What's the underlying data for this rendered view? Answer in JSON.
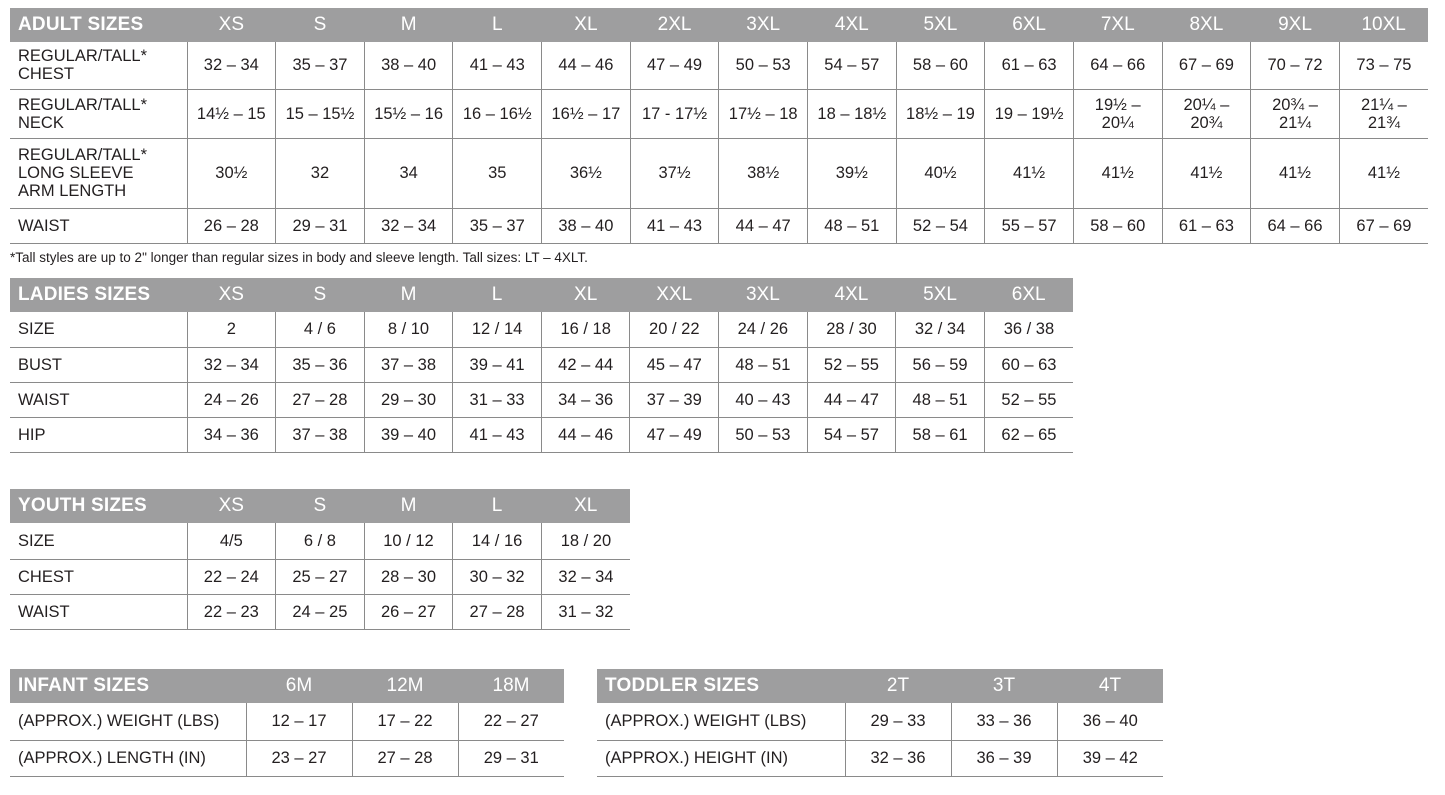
{
  "adult": {
    "title": "ADULT SIZES",
    "sizes": [
      "XS",
      "S",
      "M",
      "L",
      "XL",
      "2XL",
      "3XL",
      "4XL",
      "5XL",
      "6XL",
      "7XL",
      "8XL",
      "9XL",
      "10XL"
    ],
    "rows": [
      {
        "label": "REGULAR/TALL*\nCHEST",
        "values": [
          "32 – 34",
          "35 – 37",
          "38 – 40",
          "41 – 43",
          "44 – 46",
          "47 – 49",
          "50 – 53",
          "54 – 57",
          "58 – 60",
          "61 – 63",
          "64 – 66",
          "67 – 69",
          "70 – 72",
          "73 – 75"
        ]
      },
      {
        "label": "REGULAR/TALL*\nNECK",
        "values": [
          "14½ – 15",
          "15 – 15½",
          "15½ – 16",
          "16 – 16½",
          "16½ – 17",
          "17 - 17½",
          "17½ – 18",
          "18 – 18½",
          "18½ – 19",
          "19 – 19½",
          "19½ –\n20¼",
          "20¼ –\n20¾",
          "20¾ –\n21¼",
          "21¼ –\n21¾"
        ]
      },
      {
        "label": "REGULAR/TALL*\nLONG SLEEVE\nARM LENGTH",
        "values": [
          "30½",
          "32",
          "34",
          "35",
          "36½",
          "37½",
          "38½",
          "39½",
          "40½",
          "41½",
          "41½",
          "41½",
          "41½",
          "41½"
        ]
      },
      {
        "label": "WAIST",
        "values": [
          "26 – 28",
          "29 – 31",
          "32 – 34",
          "35 – 37",
          "38 – 40",
          "41 – 43",
          "44 – 47",
          "48 – 51",
          "52 – 54",
          "55 – 57",
          "58 – 60",
          "61 – 63",
          "64 – 66",
          "67 – 69"
        ]
      }
    ],
    "footnote": "*Tall styles are up to 2\" longer than regular sizes in body and sleeve length. Tall sizes: LT – 4XLT."
  },
  "ladies": {
    "title": "LADIES SIZES",
    "sizes": [
      "XS",
      "S",
      "M",
      "L",
      "XL",
      "XXL",
      "3XL",
      "4XL",
      "5XL",
      "6XL"
    ],
    "rows": [
      {
        "label": "SIZE",
        "values": [
          "2",
          "4 / 6",
          "8 / 10",
          "12 / 14",
          "16 / 18",
          "20 / 22",
          "24 / 26",
          "28 / 30",
          "32 / 34",
          "36 / 38"
        ]
      },
      {
        "label": "BUST",
        "values": [
          "32 – 34",
          "35 – 36",
          "37 – 38",
          "39 – 41",
          "42 – 44",
          "45 – 47",
          "48 – 51",
          "52 – 55",
          "56 – 59",
          "60 – 63"
        ]
      },
      {
        "label": "WAIST",
        "values": [
          "24 – 26",
          "27 – 28",
          "29 – 30",
          "31 – 33",
          "34 – 36",
          "37 – 39",
          "40 – 43",
          "44 – 47",
          "48 – 51",
          "52 – 55"
        ]
      },
      {
        "label": "HIP",
        "values": [
          "34 – 36",
          "37 – 38",
          "39 – 40",
          "41 – 43",
          "44 – 46",
          "47 – 49",
          "50 – 53",
          "54 – 57",
          "58 – 61",
          "62 – 65"
        ]
      }
    ]
  },
  "youth": {
    "title": "YOUTH SIZES",
    "sizes": [
      "XS",
      "S",
      "M",
      "L",
      "XL"
    ],
    "rows": [
      {
        "label": "SIZE",
        "values": [
          "4/5",
          "6 / 8",
          "10 / 12",
          "14 / 16",
          "18 / 20"
        ]
      },
      {
        "label": "CHEST",
        "values": [
          "22 – 24",
          "25 – 27",
          "28 – 30",
          "30 – 32",
          "32 – 34"
        ]
      },
      {
        "label": "WAIST",
        "values": [
          "22 – 23",
          "24 – 25",
          "26 – 27",
          "27 – 28",
          "31 – 32"
        ]
      }
    ]
  },
  "infant": {
    "title": "INFANT SIZES",
    "sizes": [
      "6M",
      "12M",
      "18M"
    ],
    "rows": [
      {
        "label": "(APPROX.) WEIGHT (LBS)",
        "values": [
          "12 – 17",
          "17 – 22",
          "22 – 27"
        ]
      },
      {
        "label": "(APPROX.) LENGTH (IN)",
        "values": [
          "23 – 27",
          "27 – 28",
          "29 – 31"
        ]
      }
    ]
  },
  "toddler": {
    "title": "TODDLER SIZES",
    "sizes": [
      "2T",
      "3T",
      "4T"
    ],
    "rows": [
      {
        "label": "(APPROX.) WEIGHT (LBS)",
        "values": [
          "29 – 33",
          "33 – 36",
          "36 – 40"
        ]
      },
      {
        "label": "(APPROX.) HEIGHT (IN)",
        "values": [
          "32 – 36",
          "36 – 39",
          "39 – 42"
        ]
      }
    ]
  }
}
